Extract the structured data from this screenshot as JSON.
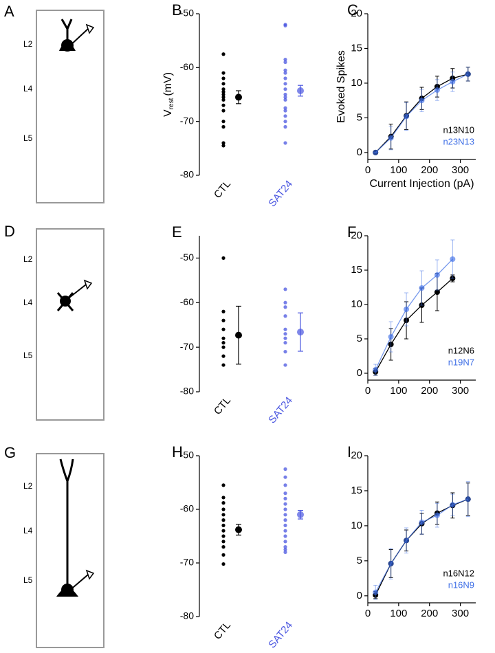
{
  "schematics": [
    {
      "panel": "A",
      "layers": [
        "L2",
        "L4",
        "L5"
      ]
    },
    {
      "panel": "D",
      "layers": [
        "L2",
        "L4",
        "L5"
      ]
    },
    {
      "panel": "G",
      "layers": [
        "L2",
        "L4",
        "L5"
      ]
    }
  ],
  "chart_data": [
    {
      "type": "strip",
      "panel": "B",
      "categories": [
        "CTL",
        "SAT24"
      ],
      "y_label": "V",
      "y_label_sub": "rest",
      "y_label_unit": "(mV)",
      "ylim": [
        -80,
        -50
      ],
      "yticks": [
        -80,
        -70,
        -60,
        -50
      ],
      "series": [
        {
          "color": "#000000",
          "values": [
            -57.5,
            -61,
            -62,
            -63,
            -64,
            -64.5,
            -65,
            -65.5,
            -66,
            -67,
            -68,
            -70,
            -71,
            -74,
            -74.5
          ],
          "mean": -65.5,
          "error": 1.2
        },
        {
          "color": "#4a56e0",
          "values": [
            -52,
            -52.2,
            -58.5,
            -59,
            -60.5,
            -61,
            -62,
            -63,
            -64,
            -65,
            -65.5,
            -66,
            -67.5,
            -68,
            -69,
            -70,
            -71,
            -74
          ],
          "mean": -64.3,
          "error": 1
        }
      ]
    },
    {
      "type": "line",
      "panel": "C",
      "y_label": "Evoked Spikes",
      "x_label": "Current Injection (pA)",
      "x": [
        25,
        75,
        125,
        175,
        225,
        275,
        325
      ],
      "xlim": [
        0,
        350
      ],
      "xticks": [
        0,
        100,
        200,
        300
      ],
      "ylim": [
        -1,
        20
      ],
      "yticks": [
        0,
        5,
        10,
        15,
        20
      ],
      "series": [
        {
          "name": "n13N10",
          "color": "#000000",
          "values": [
            0,
            2.3,
            5.3,
            7.8,
            9.5,
            10.7,
            11.3
          ],
          "errors": [
            0,
            1.8,
            2,
            1.6,
            1.5,
            1.4,
            1
          ]
        },
        {
          "name": "n23N13",
          "color": "#3f6fe6",
          "values": [
            0,
            2.1,
            5.2,
            7.5,
            9,
            10.2,
            11.3
          ],
          "errors": [
            0,
            1.7,
            2,
            1.6,
            1.5,
            1.4,
            1
          ]
        }
      ]
    },
    {
      "type": "strip",
      "panel": "E",
      "categories": [
        "CTL",
        "SAT24"
      ],
      "ylim": [
        -80,
        -45
      ],
      "yticks": [
        -80,
        -70,
        -60,
        -50
      ],
      "series": [
        {
          "color": "#000000",
          "values": [
            -50,
            -62,
            -64,
            -66,
            -68,
            -69,
            -70,
            -72,
            -74
          ],
          "mean": -67.3,
          "error": 6.5
        },
        {
          "color": "#4a56e0",
          "values": [
            -57,
            -60,
            -61,
            -63,
            -66,
            -67,
            -68,
            -69,
            -71,
            -74
          ],
          "mean": -66.6,
          "error": 4.3
        }
      ]
    },
    {
      "type": "line",
      "panel": "F",
      "x": [
        25,
        75,
        125,
        175,
        225,
        275
      ],
      "xlim": [
        0,
        350
      ],
      "xticks": [
        0,
        100,
        200,
        300
      ],
      "ylim": [
        -1,
        20
      ],
      "yticks": [
        0,
        5,
        10,
        15,
        20
      ],
      "series": [
        {
          "name": "n12N6",
          "color": "#000000",
          "values": [
            0.2,
            4.2,
            7.7,
            9.9,
            11.8,
            13.8
          ],
          "errors": [
            0.5,
            2.3,
            2.7,
            2.5,
            2.7,
            0.5
          ]
        },
        {
          "name": "n19N7",
          "color": "#3f6fe6",
          "values": [
            0.5,
            5.3,
            9.3,
            12.4,
            14.3,
            16.6
          ],
          "errors": [
            0.8,
            2.2,
            2.4,
            2.5,
            2.2,
            2.8
          ]
        }
      ]
    },
    {
      "type": "strip",
      "panel": "H",
      "categories": [
        "CTL",
        "SAT24"
      ],
      "ylim": [
        -80,
        -50
      ],
      "yticks": [
        -80,
        -70,
        -60,
        -50
      ],
      "series": [
        {
          "color": "#000000",
          "values": [
            -55.5,
            -57.8,
            -58.8,
            -60,
            -61,
            -62,
            -63,
            -64,
            -65,
            -66,
            -67,
            -68.5,
            -70.2
          ],
          "mean": -63.8,
          "error": 1
        },
        {
          "color": "#4a56e0",
          "values": [
            -52.5,
            -54,
            -55.5,
            -57,
            -58,
            -59,
            -60,
            -61,
            -62,
            -63,
            -64,
            -65,
            -66,
            -67,
            -67.5,
            -68
          ],
          "mean": -61,
          "error": 0.8
        }
      ]
    },
    {
      "type": "line",
      "panel": "I",
      "x": [
        25,
        75,
        125,
        175,
        225,
        275,
        325
      ],
      "xlim": [
        0,
        350
      ],
      "xticks": [
        0,
        100,
        200,
        300
      ],
      "ylim": [
        -1,
        20
      ],
      "yticks": [
        0,
        5,
        10,
        15,
        20
      ],
      "series": [
        {
          "name": "n16N12",
          "color": "#000000",
          "values": [
            0.1,
            4.6,
            7.9,
            10.3,
            11.8,
            12.9,
            13.8
          ],
          "errors": [
            0.5,
            2,
            1.5,
            1.5,
            1.6,
            1.8,
            2.3
          ]
        },
        {
          "name": "n16N9",
          "color": "#3f6fe6",
          "values": [
            0.5,
            4.6,
            7.9,
            10.5,
            11.5,
            13,
            13.8
          ],
          "errors": [
            1,
            2.2,
            1.8,
            1.7,
            1.7,
            1.5,
            2.5
          ]
        }
      ]
    }
  ]
}
